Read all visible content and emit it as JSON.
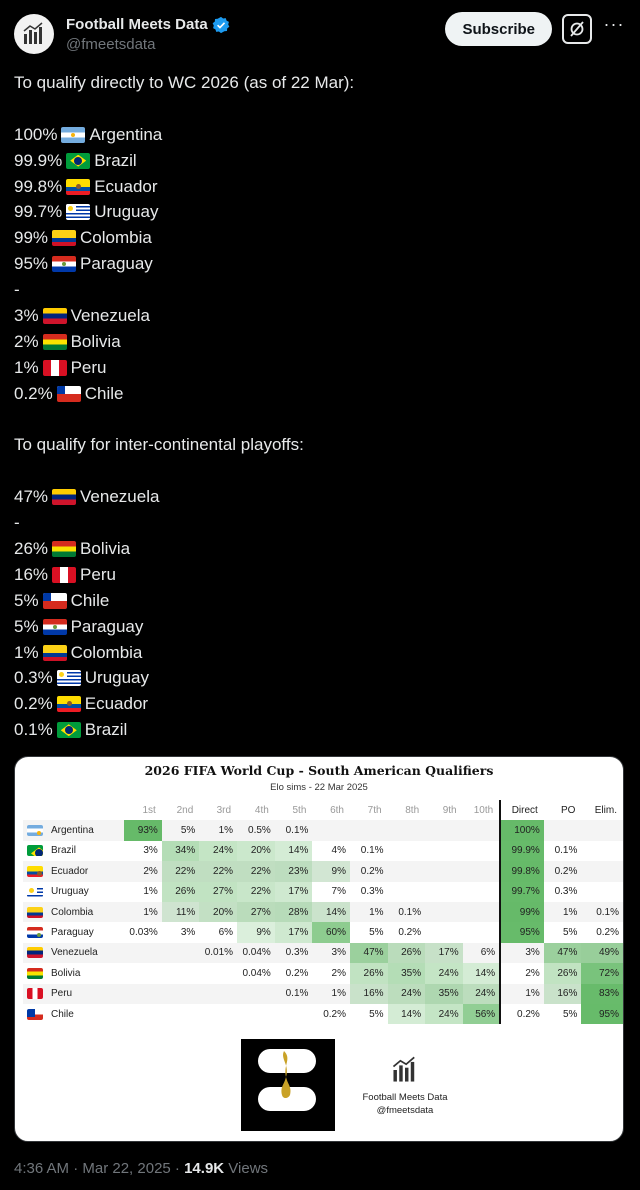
{
  "account": {
    "name": "Football Meets Data",
    "handle": "@fmeetsdata",
    "subscribe_label": "Subscribe",
    "more_label": "···"
  },
  "tweet": {
    "lines": [
      {
        "text": "To qualify directly to WC 2026 (as of 22 Mar):"
      },
      {
        "text": ""
      },
      {
        "pct": "100%",
        "flag": "ARG",
        "team": "Argentina"
      },
      {
        "pct": "99.9%",
        "flag": "BRA",
        "team": "Brazil"
      },
      {
        "pct": "99.8%",
        "flag": "ECU",
        "team": "Ecuador"
      },
      {
        "pct": "99.7%",
        "flag": "URU",
        "team": "Uruguay"
      },
      {
        "pct": "99%",
        "flag": "COL",
        "team": "Colombia"
      },
      {
        "pct": "95%",
        "flag": "PAR",
        "team": "Paraguay"
      },
      {
        "text": "-"
      },
      {
        "pct": "3%",
        "flag": "VEN",
        "team": "Venezuela"
      },
      {
        "pct": "2%",
        "flag": "BOL",
        "team": "Bolivia"
      },
      {
        "pct": "1%",
        "flag": "PER",
        "team": "Peru"
      },
      {
        "pct": "0.2%",
        "flag": "CHI",
        "team": "Chile"
      },
      {
        "text": ""
      },
      {
        "text": "To qualify for inter-continental playoffs:"
      },
      {
        "text": ""
      },
      {
        "pct": "47%",
        "flag": "VEN",
        "team": "Venezuela"
      },
      {
        "text": "-"
      },
      {
        "pct": "26%",
        "flag": "BOL",
        "team": "Bolivia"
      },
      {
        "pct": "16%",
        "flag": "PER",
        "team": "Peru"
      },
      {
        "pct": "5%",
        "flag": "CHI",
        "team": "Chile"
      },
      {
        "pct": "5%",
        "flag": "PAR",
        "team": "Paraguay"
      },
      {
        "pct": "1%",
        "flag": "COL",
        "team": "Colombia"
      },
      {
        "pct": "0.3%",
        "flag": "URU",
        "team": "Uruguay"
      },
      {
        "pct": "0.2%",
        "flag": "ECU",
        "team": "Ecuador"
      },
      {
        "pct": "0.1%",
        "flag": "BRA",
        "team": "Brazil"
      }
    ]
  },
  "card": {
    "title": "2026 FIFA World Cup - South American Qualifiers",
    "subtitle": "Elo sims - 22 Mar 2025",
    "brand_name": "Football Meets Data",
    "brand_handle": "@fmeetsdata",
    "logo_text": "FIFA",
    "headers": [
      "1st",
      "2nd",
      "3rd",
      "4th",
      "5th",
      "6th",
      "7th",
      "8th",
      "9th",
      "10th",
      "Direct",
      "PO",
      "Elim."
    ],
    "rows": [
      {
        "flag": "ARG",
        "team": "Argentina",
        "v": [
          "93%",
          "5%",
          "1%",
          "0.5%",
          "0.1%",
          "",
          "",
          "",
          "",
          "",
          "100%",
          "",
          ""
        ]
      },
      {
        "flag": "BRA",
        "team": "Brazil",
        "v": [
          "3%",
          "34%",
          "24%",
          "20%",
          "14%",
          "4%",
          "0.1%",
          "",
          "",
          "",
          "99.9%",
          "0.1%",
          ""
        ]
      },
      {
        "flag": "ECU",
        "team": "Ecuador",
        "v": [
          "2%",
          "22%",
          "22%",
          "22%",
          "23%",
          "9%",
          "0.2%",
          "",
          "",
          "",
          "99.8%",
          "0.2%",
          ""
        ]
      },
      {
        "flag": "URU",
        "team": "Uruguay",
        "v": [
          "1%",
          "26%",
          "27%",
          "22%",
          "17%",
          "7%",
          "0.3%",
          "",
          "",
          "",
          "99.7%",
          "0.3%",
          ""
        ]
      },
      {
        "flag": "COL",
        "team": "Colombia",
        "v": [
          "1%",
          "11%",
          "20%",
          "27%",
          "28%",
          "14%",
          "1%",
          "0.1%",
          "",
          "",
          "99%",
          "1%",
          "0.1%"
        ]
      },
      {
        "flag": "PAR",
        "team": "Paraguay",
        "v": [
          "0.03%",
          "3%",
          "6%",
          "9%",
          "17%",
          "60%",
          "5%",
          "0.2%",
          "",
          "",
          "95%",
          "5%",
          "0.2%"
        ]
      },
      {
        "flag": "VEN",
        "team": "Venezuela",
        "v": [
          "",
          "",
          "0.01%",
          "0.04%",
          "0.3%",
          "3%",
          "47%",
          "26%",
          "17%",
          "6%",
          "3%",
          "47%",
          "49%"
        ]
      },
      {
        "flag": "BOL",
        "team": "Bolivia",
        "v": [
          "",
          "",
          "",
          "0.04%",
          "0.2%",
          "2%",
          "26%",
          "35%",
          "24%",
          "14%",
          "2%",
          "26%",
          "72%"
        ]
      },
      {
        "flag": "PER",
        "team": "Peru",
        "v": [
          "",
          "",
          "",
          "",
          "0.1%",
          "1%",
          "16%",
          "24%",
          "35%",
          "24%",
          "1%",
          "16%",
          "83%"
        ]
      },
      {
        "flag": "CHI",
        "team": "Chile",
        "v": [
          "",
          "",
          "",
          "",
          "",
          "0.2%",
          "5%",
          "14%",
          "24%",
          "56%",
          "0.2%",
          "5%",
          "95%"
        ]
      }
    ]
  },
  "footer": {
    "time": "4:36 AM · Mar 22, 2025 · ",
    "views_count": "14.9K",
    "views_label": " Views"
  },
  "colors": {
    "background": "#000000",
    "text": "#e7e9ea",
    "muted": "#71767b",
    "verified": "#1d9bf0",
    "heat": "#4caf50"
  }
}
